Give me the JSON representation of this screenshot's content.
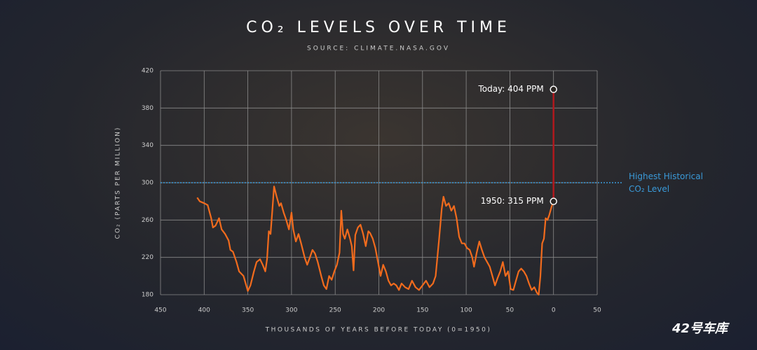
{
  "chart_data": {
    "type": "line",
    "title": "CO₂ LEVELS OVER TIME",
    "subtitle": "SOURCE: CLIMATE.NASA.GOV",
    "x_label": "THOUSANDS OF YEARS BEFORE TODAY (0=1950)",
    "y_label": "CO₂ (PARTS PER MILLION)",
    "xlim": [
      450,
      -50
    ],
    "xticks": [
      450,
      400,
      350,
      300,
      250,
      200,
      150,
      100,
      50,
      0,
      {
        "value": -50,
        "label": "50"
      }
    ],
    "ylim": [
      180,
      420
    ],
    "yticks": [
      180,
      220,
      260,
      300,
      340,
      380,
      420
    ],
    "grid": true,
    "series": [
      {
        "color": "#f26b1d",
        "x": [
          408,
          405,
          400,
          396,
          392,
          390,
          387,
          383,
          380,
          376,
          372,
          370,
          367,
          363,
          360,
          355,
          350,
          347,
          343,
          340,
          336,
          333,
          330,
          328,
          326,
          324,
          322,
          320,
          317,
          314,
          312,
          309,
          306,
          303,
          300,
          298,
          295,
          292,
          289,
          285,
          282,
          279,
          276,
          273,
          270,
          266,
          263,
          260,
          257,
          254,
          251,
          248,
          245,
          243,
          241,
          239,
          236,
          233,
          231,
          229,
          227,
          224,
          221,
          218,
          215,
          212,
          210,
          207,
          204,
          201,
          198,
          195,
          192,
          189,
          186,
          183,
          180,
          177,
          174,
          170,
          166,
          162,
          158,
          154,
          150,
          146,
          142,
          138,
          135,
          131,
          128,
          126,
          123,
          120,
          117,
          114,
          111,
          108,
          105,
          102,
          99,
          96,
          93,
          91,
          88,
          85,
          82,
          79,
          76,
          73,
          70,
          67,
          64,
          61,
          58,
          55,
          52,
          49,
          46,
          43,
          40,
          37,
          34,
          31,
          28,
          25,
          22,
          19,
          17,
          15,
          13,
          11,
          9,
          7,
          5,
          2,
          0
        ],
        "values": [
          284,
          280,
          278,
          276,
          262,
          252,
          254,
          262,
          250,
          245,
          238,
          228,
          226,
          215,
          205,
          200,
          184,
          190,
          205,
          215,
          218,
          212,
          205,
          218,
          248,
          245,
          270,
          296,
          285,
          275,
          278,
          268,
          260,
          250,
          268,
          250,
          237,
          245,
          235,
          220,
          212,
          220,
          228,
          224,
          215,
          200,
          190,
          186,
          200,
          196,
          205,
          212,
          225,
          270,
          245,
          240,
          250,
          240,
          232,
          206,
          244,
          252,
          255,
          245,
          232,
          248,
          246,
          240,
          230,
          215,
          200,
          212,
          205,
          195,
          190,
          192,
          190,
          185,
          192,
          188,
          186,
          195,
          188,
          185,
          190,
          195,
          188,
          192,
          200,
          240,
          272,
          285,
          275,
          278,
          270,
          275,
          262,
          242,
          235,
          235,
          230,
          228,
          220,
          210,
          225,
          237,
          228,
          220,
          215,
          210,
          200,
          190,
          198,
          205,
          215,
          200,
          205,
          186,
          185,
          195,
          205,
          208,
          205,
          200,
          192,
          185,
          188,
          182,
          180,
          200,
          235,
          240,
          262,
          260,
          265,
          275,
          280
        ]
      }
    ],
    "reference_line": {
      "value": 300,
      "color": "#3a9ad9",
      "label": "Highest Historical CO₂ Level"
    },
    "annotations": [
      {
        "text": "Today: 404 PPM",
        "x": 0,
        "y": 400
      },
      {
        "text": "1950: 315 PPM",
        "x": 0,
        "y": 280
      }
    ],
    "rise_color": "#b0191e",
    "watermark": "42号车库"
  }
}
